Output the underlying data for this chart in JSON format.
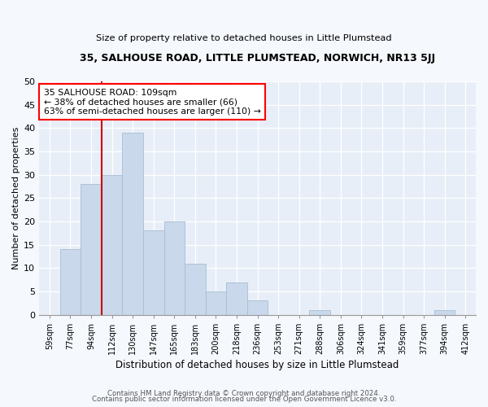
{
  "title1": "35, SALHOUSE ROAD, LITTLE PLUMSTEAD, NORWICH, NR13 5JJ",
  "title2": "Size of property relative to detached houses in Little Plumstead",
  "xlabel": "Distribution of detached houses by size in Little Plumstead",
  "ylabel_full": "Number of detached properties",
  "categories": [
    "59sqm",
    "77sqm",
    "94sqm",
    "112sqm",
    "130sqm",
    "147sqm",
    "165sqm",
    "183sqm",
    "200sqm",
    "218sqm",
    "236sqm",
    "253sqm",
    "271sqm",
    "288sqm",
    "306sqm",
    "324sqm",
    "341sqm",
    "359sqm",
    "377sqm",
    "394sqm",
    "412sqm"
  ],
  "values": [
    0,
    14,
    28,
    30,
    39,
    18,
    20,
    11,
    5,
    7,
    3,
    0,
    0,
    1,
    0,
    0,
    0,
    0,
    0,
    1,
    0
  ],
  "bar_color": "#c9d8ea",
  "bar_edge_color": "#a8bdd4",
  "annotation_line1": "35 SALHOUSE ROAD: 109sqm",
  "annotation_line2": "← 38% of detached houses are smaller (66)",
  "annotation_line3": "63% of semi-detached houses are larger (110) →",
  "annotation_box_color": "white",
  "annotation_box_edge_color": "red",
  "red_line_color": "#cc0000",
  "ylim": [
    0,
    50
  ],
  "yticks": [
    0,
    5,
    10,
    15,
    20,
    25,
    30,
    35,
    40,
    45,
    50
  ],
  "footer1": "Contains HM Land Registry data © Crown copyright and database right 2024.",
  "footer2": "Contains public sector information licensed under the Open Government Licence v3.0.",
  "fig_bg_color": "#f5f8fd",
  "plot_bg_color": "#e8eef7"
}
